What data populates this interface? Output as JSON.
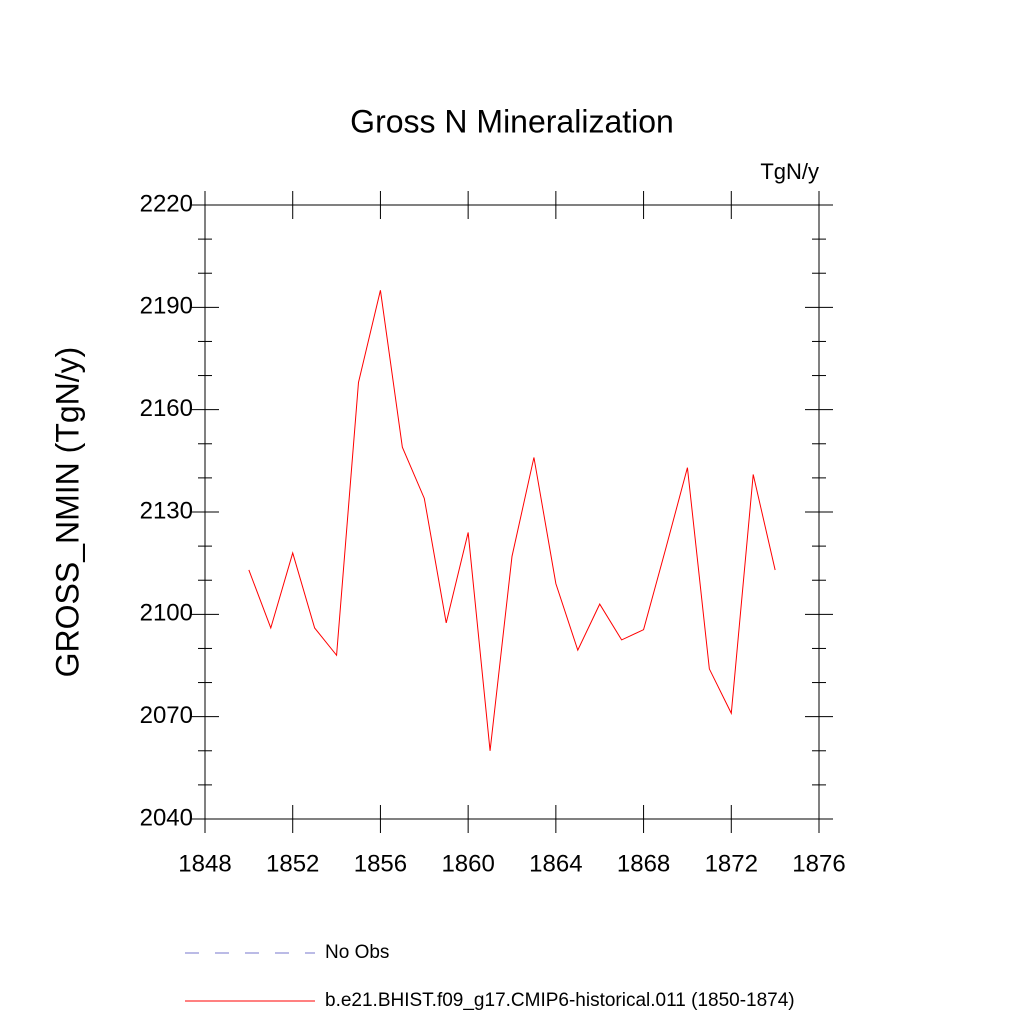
{
  "chart_data": {
    "type": "line",
    "title": "Gross N Mineralization",
    "units_label": "TgN/y",
    "y_label": "GROSS_NMIN  (TgN/y)",
    "x": [
      1850,
      1851,
      1852,
      1853,
      1854,
      1855,
      1856,
      1857,
      1858,
      1859,
      1860,
      1861,
      1862,
      1863,
      1864,
      1865,
      1866,
      1867,
      1868,
      1869,
      1870,
      1871,
      1872,
      1873,
      1874
    ],
    "series": [
      {
        "name": "b.e21.BHIST.f09_g17.CMIP6-historical.011 (1850-1874)",
        "color": "#ff0000",
        "values": [
          2113,
          2096,
          2118,
          2096,
          2088,
          2168,
          2195,
          2149,
          2134,
          2097.5,
          2124,
          2060,
          2117,
          2146,
          2109,
          2089.5,
          2103,
          2092.5,
          2095.5,
          2119,
          2143,
          2084,
          2071,
          2141,
          2113
        ]
      }
    ],
    "reference": {
      "name": "No Obs",
      "color": "#7777cc",
      "dashed": true
    },
    "xlim": [
      1848,
      1876
    ],
    "xticks": [
      1848,
      1852,
      1856,
      1860,
      1864,
      1868,
      1872,
      1876
    ],
    "ylim": [
      2040,
      2220
    ],
    "yticks": [
      2040,
      2070,
      2100,
      2130,
      2160,
      2190,
      2220
    ],
    "yminorticks": [
      2050,
      2060,
      2080,
      2090,
      2110,
      2120,
      2140,
      2150,
      2170,
      2180,
      2200,
      2210
    ]
  }
}
